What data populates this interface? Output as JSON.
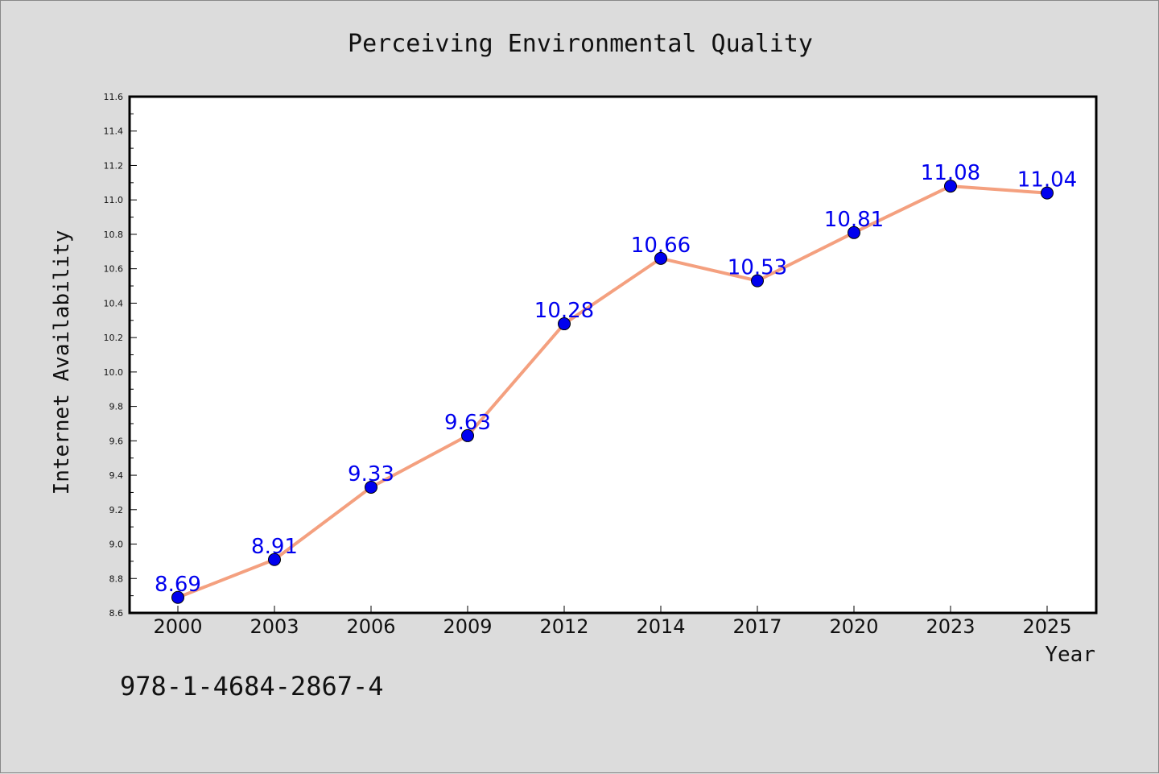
{
  "colors": {
    "background": "#dcdcdc",
    "plot_background": "#ffffff",
    "line": "#f4a07f",
    "marker": "#0000ee",
    "data_label": "#0000ee"
  },
  "footer": {
    "isbn": "978-1-4684-2867-4"
  },
  "chart_data": {
    "type": "line",
    "title": "Perceiving Environmental Quality",
    "xlabel": "Year",
    "ylabel": "Internet Availability",
    "categories": [
      "2000",
      "2003",
      "2006",
      "2009",
      "2012",
      "2014",
      "2017",
      "2020",
      "2023",
      "2025"
    ],
    "series": [
      {
        "values": [
          8.69,
          8.91,
          9.33,
          9.63,
          10.28,
          10.66,
          10.53,
          10.81,
          11.08,
          11.04
        ],
        "data_labels": [
          "8.69",
          "8.91",
          "9.33",
          "9.63",
          "10.28",
          "10.66",
          "10.53",
          "10.81",
          "11.08",
          "11.04"
        ]
      }
    ],
    "ylim": [
      8.6,
      11.6
    ],
    "yticks": [
      8.6,
      8.8,
      9.0,
      9.2,
      9.4,
      9.6,
      9.8,
      10.0,
      10.2,
      10.4,
      10.6,
      10.8,
      11.0,
      11.2,
      11.4,
      11.6
    ],
    "ytick_labels": [
      "8.6",
      "8.8",
      "9.0",
      "9.2",
      "9.4",
      "9.6",
      "9.8",
      "10.0",
      "10.2",
      "10.4",
      "10.6",
      "10.8",
      "11.0",
      "11.2",
      "11.4",
      "11.6"
    ],
    "grid": false,
    "legend": "none"
  }
}
